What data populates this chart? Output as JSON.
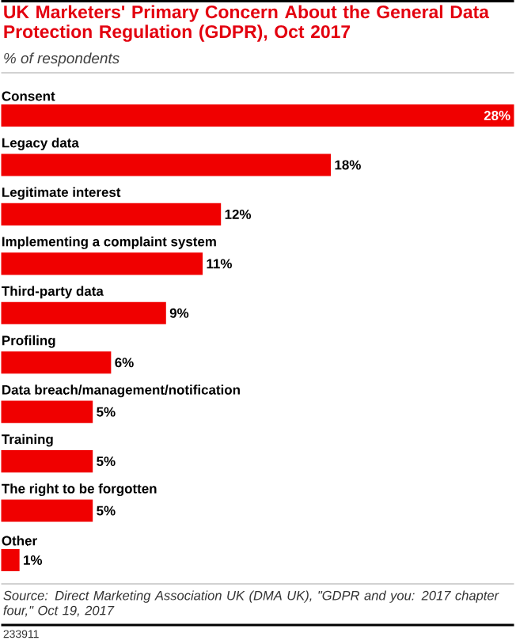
{
  "chart_data": {
    "type": "bar",
    "orientation": "horizontal",
    "title": "UK Marketers' Primary Concern About the General Data Protection Regulation (GDPR), Oct 2017",
    "subtitle": "% of respondents",
    "categories": [
      "Consent",
      "Legacy data",
      "Legitimate interest",
      "Implementing a complaint system",
      "Third-party data",
      "Profiling",
      "Data breach/management/notification",
      "Training",
      "The right to be forgotten",
      "Other"
    ],
    "values": [
      28,
      18,
      12,
      11,
      9,
      6,
      5,
      5,
      5,
      1
    ],
    "value_labels": [
      "28%",
      "18%",
      "12%",
      "11%",
      "9%",
      "6%",
      "5%",
      "5%",
      "5%",
      "1%"
    ],
    "color": "#f00000",
    "tick_labels": false,
    "annotations": [
      "Source: Direct Marketing Association UK (DMA UK), \"GDPR and you: 2017 chapter four,\" Oct 19, 2017",
      "233911"
    ]
  }
}
